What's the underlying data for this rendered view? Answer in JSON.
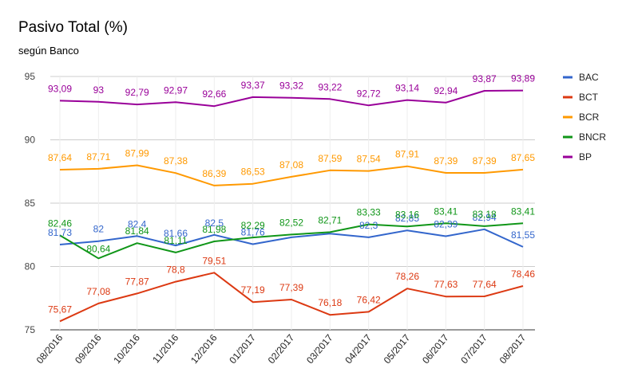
{
  "chart_data": {
    "type": "line",
    "title": "Pasivo Total (%)",
    "subtitle": "según Banco",
    "xlabel": "",
    "ylabel": "",
    "ylim": [
      75,
      95
    ],
    "yticks": [
      75,
      80,
      85,
      90,
      95
    ],
    "grid": true,
    "legend_position": "right",
    "categories": [
      "08/2016",
      "09/2016",
      "10/2016",
      "11/2016",
      "12/2016",
      "01/2017",
      "02/2017",
      "03/2017",
      "04/2017",
      "05/2017",
      "06/2017",
      "07/2017",
      "08/2017"
    ],
    "series": [
      {
        "name": "BAC",
        "color": "#3366cc",
        "values": [
          81.73,
          82,
          82.4,
          81.66,
          82.5,
          81.76,
          82.3,
          82.6,
          82.3,
          82.85,
          82.39,
          82.94,
          81.55
        ],
        "labels": [
          "81,73",
          "82",
          "82,4",
          "81,66",
          "82,5",
          "81,76",
          "",
          "",
          "82,3",
          "82,85",
          "82,39",
          "82,94",
          "81,55"
        ]
      },
      {
        "name": "BCT",
        "color": "#dc3912",
        "values": [
          75.67,
          77.08,
          77.87,
          78.8,
          79.51,
          77.19,
          77.39,
          76.18,
          76.42,
          78.26,
          77.63,
          77.64,
          78.46
        ],
        "labels": [
          "75,67",
          "77,08",
          "77,87",
          "78,8",
          "79,51",
          "77,19",
          "77,39",
          "76,18",
          "76,42",
          "78,26",
          "77,63",
          "77,64",
          "78,46"
        ]
      },
      {
        "name": "BCR",
        "color": "#ff9900",
        "values": [
          87.64,
          87.71,
          87.99,
          87.38,
          86.39,
          86.53,
          87.08,
          87.59,
          87.54,
          87.91,
          87.39,
          87.39,
          87.65
        ],
        "labels": [
          "87,64",
          "87,71",
          "87,99",
          "87,38",
          "86,39",
          "86,53",
          "87,08",
          "87,59",
          "87,54",
          "87,91",
          "87,39",
          "87,39",
          "87,65"
        ]
      },
      {
        "name": "BNCR",
        "color": "#109618",
        "values": [
          82.46,
          80.64,
          81.84,
          81.11,
          81.98,
          82.29,
          82.52,
          82.71,
          83.33,
          83.16,
          83.41,
          83.18,
          83.41
        ],
        "labels": [
          "82,46",
          "80,64",
          "81,84",
          "81,11",
          "81,98",
          "82,29",
          "82,52",
          "82,71",
          "83,33",
          "83,16",
          "83,41",
          "83,18",
          "83,41"
        ]
      },
      {
        "name": "BP",
        "color": "#990099",
        "values": [
          93.09,
          93,
          92.79,
          92.97,
          92.66,
          93.37,
          93.32,
          93.22,
          92.72,
          93.14,
          92.94,
          93.87,
          93.89
        ],
        "labels": [
          "93,09",
          "93",
          "92,79",
          "92,97",
          "92,66",
          "93,37",
          "93,32",
          "93,22",
          "92,72",
          "93,14",
          "92,94",
          "93,87",
          "93,89"
        ]
      }
    ]
  }
}
